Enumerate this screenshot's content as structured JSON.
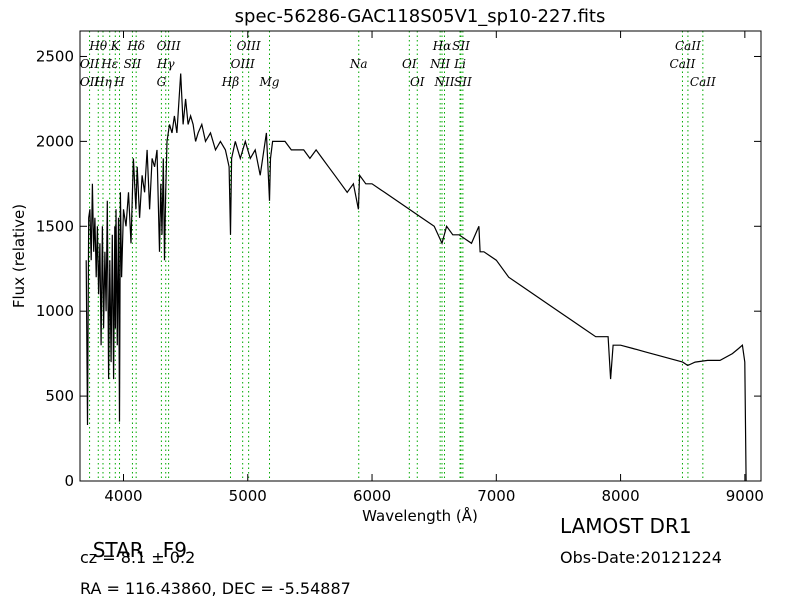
{
  "chart_data": {
    "type": "line",
    "title": "spec-56286-GAC118S05V1_sp10-227.fits",
    "xlabel": "Wavelength (Å)",
    "ylabel": "Flux (relative)",
    "xlim": [
      3650,
      9130
    ],
    "ylim": [
      0,
      2650
    ],
    "xticks": [
      4000,
      5000,
      6000,
      7000,
      8000,
      9000
    ],
    "yticks": [
      0,
      500,
      1000,
      1500,
      2000,
      2500
    ],
    "series": [
      {
        "x": [
          3700,
          3710,
          3720,
          3730,
          3740,
          3750,
          3760,
          3770,
          3780,
          3790,
          3800,
          3810,
          3820,
          3830,
          3840,
          3850,
          3860,
          3870,
          3880,
          3890,
          3900,
          3910,
          3920,
          3930,
          3935,
          3940,
          3950,
          3960,
          3968,
          3975,
          3985,
          4000,
          4020,
          4040,
          4060,
          4080,
          4100,
          4110,
          4130,
          4150,
          4170,
          4190,
          4210,
          4230,
          4250,
          4270,
          4290,
          4300,
          4310,
          4320,
          4330,
          4340,
          4350,
          4370,
          4390,
          4410,
          4430,
          4460,
          4480,
          4500,
          4520,
          4540,
          4560,
          4580,
          4600,
          4630,
          4660,
          4700,
          4740,
          4780,
          4820,
          4850,
          4861,
          4870,
          4900,
          4940,
          4980,
          5020,
          5060,
          5100,
          5150,
          5175,
          5183,
          5200,
          5250,
          5300,
          5350,
          5400,
          5450,
          5500,
          5550,
          5600,
          5650,
          5700,
          5750,
          5800,
          5850,
          5890,
          5900,
          5950,
          6000,
          6100,
          6200,
          6300,
          6400,
          6500,
          6563,
          6600,
          6650,
          6700,
          6800,
          6860,
          6870,
          6900,
          7000,
          7100,
          7200,
          7300,
          7400,
          7500,
          7600,
          7700,
          7800,
          7900,
          7920,
          7940,
          8000,
          8100,
          8200,
          8300,
          8400,
          8500,
          8540,
          8600,
          8700,
          8800,
          8900,
          8950,
          8980,
          9000,
          9010
        ],
        "y": [
          1300,
          330,
          1550,
          1600,
          1300,
          1750,
          1350,
          1550,
          1200,
          1500,
          1100,
          1400,
          800,
          1500,
          900,
          1350,
          1000,
          1650,
          600,
          1300,
          700,
          1450,
          600,
          1500,
          900,
          1600,
          800,
          1550,
          350,
          1700,
          1200,
          1600,
          1500,
          1700,
          1400,
          1900,
          1600,
          1850,
          1550,
          1800,
          1700,
          1950,
          1600,
          1900,
          1850,
          1950,
          1350,
          1750,
          1450,
          1900,
          1300,
          1700,
          2000,
          2100,
          2050,
          2150,
          2050,
          2400,
          2100,
          2250,
          2100,
          2150,
          2100,
          2000,
          2050,
          2100,
          2000,
          2050,
          1950,
          2000,
          1950,
          1850,
          1450,
          1900,
          2000,
          1900,
          2000,
          1900,
          1950,
          1800,
          2050,
          1650,
          1900,
          2000,
          2000,
          2000,
          1950,
          1950,
          1950,
          1900,
          1950,
          1900,
          1850,
          1800,
          1750,
          1700,
          1750,
          1600,
          1800,
          1750,
          1750,
          1700,
          1650,
          1600,
          1550,
          1500,
          1400,
          1500,
          1450,
          1450,
          1400,
          1500,
          1350,
          1350,
          1300,
          1200,
          1150,
          1100,
          1050,
          1000,
          950,
          900,
          850,
          850,
          600,
          800,
          800,
          780,
          760,
          740,
          720,
          700,
          680,
          700,
          710,
          710,
          750,
          780,
          800,
          700,
          0
        ]
      }
    ],
    "line_labels": {
      "upper": [
        {
          "text": "Hθ",
          "wl": 3797
        },
        {
          "text": "K",
          "wl": 3934
        },
        {
          "text": "Hδ",
          "wl": 4102
        },
        {
          "text": "OIII",
          "wl": 4363
        },
        {
          "text": "OIII",
          "wl": 5007
        },
        {
          "text": "Hα",
          "wl": 6563
        },
        {
          "text": "SII",
          "wl": 6716
        },
        {
          "text": "CaII",
          "wl": 8542
        }
      ],
      "middle": [
        {
          "text": "OII",
          "wl": 3727
        },
        {
          "text": "Hε",
          "wl": 3889
        },
        {
          "text": "SII",
          "wl": 4072
        },
        {
          "text": "Hγ",
          "wl": 4340
        },
        {
          "text": "OIII",
          "wl": 4959
        },
        {
          "text": "Na",
          "wl": 5893
        },
        {
          "text": "OI",
          "wl": 6300
        },
        {
          "text": "NII",
          "wl": 6548
        },
        {
          "text": "Li",
          "wl": 6708
        },
        {
          "text": "CaII",
          "wl": 8498
        }
      ],
      "lower": [
        {
          "text": "OII",
          "wl": 3727
        },
        {
          "text": "Hη",
          "wl": 3835
        },
        {
          "text": "H",
          "wl": 3968
        },
        {
          "text": "G",
          "wl": 4305
        },
        {
          "text": "Hβ",
          "wl": 4861
        },
        {
          "text": "Mg",
          "wl": 5175
        },
        {
          "text": "OI",
          "wl": 6364
        },
        {
          "text": "NII",
          "wl": 6583
        },
        {
          "text": "SII",
          "wl": 6731
        },
        {
          "text": "CaII",
          "wl": 8662
        }
      ]
    },
    "line_color": "#000000",
    "marker_color": "#00aa00"
  },
  "info": {
    "class_label": "STAR",
    "subclass": "F9",
    "redshift": "cz = 8.1 ± 0.2",
    "coords": "RA = 116.43860, DEC = -5.54887",
    "survey": "LAMOST DR1",
    "obs_date": "Obs-Date:20121224"
  }
}
